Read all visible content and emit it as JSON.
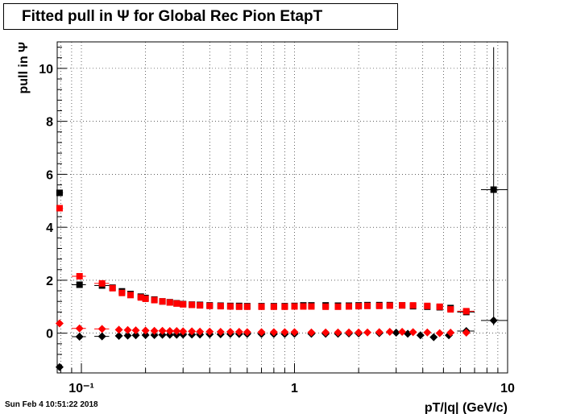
{
  "chart_data": {
    "type": "scatter",
    "title": "Fitted pull in  Ψ  for Global Rec Pion EtapT",
    "xlabel": "pT/|q| (GeV/c)",
    "ylabel": "pull in  Ψ",
    "xscale": "log",
    "xlim": [
      0.077,
      10
    ],
    "ylim": [
      -1.5,
      11.0
    ],
    "grid": true,
    "x_ticks": [
      {
        "v": 0.1,
        "label": "10⁻¹"
      },
      {
        "v": 1,
        "label": "1"
      },
      {
        "v": 10,
        "label": "10"
      }
    ],
    "y_ticks": [
      0,
      2,
      4,
      6,
      8,
      10
    ],
    "series": [
      {
        "color": "#000000",
        "marker": "square",
        "points": [
          [
            0.079,
            5.3
          ],
          [
            0.098,
            1.83
          ],
          [
            0.125,
            1.8
          ],
          [
            0.14,
            1.72
          ],
          [
            0.155,
            1.58
          ],
          [
            0.17,
            1.48
          ],
          [
            0.19,
            1.38
          ],
          [
            0.2,
            1.33
          ],
          [
            0.22,
            1.27
          ],
          [
            0.24,
            1.2
          ],
          [
            0.26,
            1.17
          ],
          [
            0.28,
            1.13
          ],
          [
            0.3,
            1.1
          ],
          [
            0.33,
            1.08
          ],
          [
            0.36,
            1.07
          ],
          [
            0.4,
            1.05
          ],
          [
            0.45,
            1.04
          ],
          [
            0.5,
            1.03
          ],
          [
            0.55,
            1.03
          ],
          [
            0.6,
            1.02
          ],
          [
            0.7,
            1.02
          ],
          [
            0.8,
            1.02
          ],
          [
            0.9,
            1.02
          ],
          [
            1.0,
            1.03
          ],
          [
            1.1,
            1.05
          ],
          [
            1.2,
            1.05
          ],
          [
            1.4,
            1.05
          ],
          [
            1.6,
            1.04
          ],
          [
            1.8,
            1.04
          ],
          [
            2.0,
            1.05
          ],
          [
            2.2,
            1.06
          ],
          [
            2.5,
            1.06
          ],
          [
            2.8,
            1.06
          ],
          [
            3.2,
            1.05
          ],
          [
            3.6,
            1.02
          ],
          [
            4.2,
            1.0
          ],
          [
            4.8,
            0.98
          ],
          [
            5.4,
            0.95
          ],
          [
            6.4,
            0.8
          ],
          [
            8.6,
            5.42
          ]
        ],
        "xerr": [
          [
            0.077,
            0.082
          ],
          [
            0.09,
            0.105
          ],
          [
            0.115,
            0.135
          ],
          null,
          null,
          null,
          null,
          null,
          null,
          null,
          null,
          null,
          null,
          null,
          null,
          null,
          null,
          null,
          null,
          null,
          null,
          null,
          null,
          null,
          null,
          null,
          null,
          null,
          null,
          null,
          null,
          null,
          null,
          null,
          null,
          null,
          null,
          null,
          [
            5.8,
            7.0
          ],
          [
            7.5,
            10.0
          ]
        ]
      },
      {
        "color": "#000000",
        "marker": "diamond",
        "points": [
          [
            0.079,
            -1.28
          ],
          [
            0.098,
            -0.13
          ],
          [
            0.125,
            -0.12
          ],
          [
            0.15,
            -0.1
          ],
          [
            0.165,
            -0.09
          ],
          [
            0.18,
            -0.08
          ],
          [
            0.2,
            -0.07
          ],
          [
            0.22,
            -0.07
          ],
          [
            0.24,
            -0.06
          ],
          [
            0.26,
            -0.06
          ],
          [
            0.28,
            -0.06
          ],
          [
            0.3,
            -0.05
          ],
          [
            0.33,
            -0.05
          ],
          [
            0.36,
            -0.05
          ],
          [
            0.4,
            -0.04
          ],
          [
            0.45,
            -0.04
          ],
          [
            0.5,
            -0.03
          ],
          [
            0.55,
            -0.03
          ],
          [
            0.6,
            -0.03
          ],
          [
            0.7,
            -0.03
          ],
          [
            0.8,
            -0.03
          ],
          [
            0.9,
            -0.03
          ],
          [
            1.0,
            -0.02
          ],
          [
            1.2,
            -0.02
          ],
          [
            1.4,
            -0.02
          ],
          [
            1.6,
            -0.02
          ],
          [
            1.8,
            -0.01
          ],
          [
            2.0,
            -0.01
          ],
          [
            2.5,
            0.0
          ],
          [
            3.0,
            0.02
          ],
          [
            3.4,
            -0.02
          ],
          [
            3.9,
            -0.08
          ],
          [
            4.5,
            -0.15
          ],
          [
            5.3,
            -0.08
          ],
          [
            6.4,
            0.08
          ],
          [
            8.6,
            0.48
          ]
        ],
        "xerr": [
          [
            0.077,
            0.082
          ],
          [
            0.09,
            0.105
          ],
          [
            0.115,
            0.135
          ],
          null,
          null,
          null,
          null,
          null,
          null,
          null,
          null,
          null,
          null,
          null,
          null,
          null,
          null,
          null,
          null,
          null,
          null,
          null,
          null,
          null,
          null,
          null,
          null,
          null,
          null,
          null,
          null,
          null,
          null,
          null,
          [
            5.8,
            7.0
          ],
          [
            7.5,
            10.0
          ]
        ]
      },
      {
        "color": "#ff0000",
        "marker": "square",
        "points": [
          [
            0.079,
            4.72
          ],
          [
            0.098,
            2.15
          ],
          [
            0.125,
            1.88
          ],
          [
            0.14,
            1.7
          ],
          [
            0.155,
            1.52
          ],
          [
            0.17,
            1.44
          ],
          [
            0.19,
            1.35
          ],
          [
            0.2,
            1.3
          ],
          [
            0.22,
            1.25
          ],
          [
            0.24,
            1.2
          ],
          [
            0.26,
            1.16
          ],
          [
            0.28,
            1.12
          ],
          [
            0.3,
            1.09
          ],
          [
            0.33,
            1.07
          ],
          [
            0.36,
            1.05
          ],
          [
            0.4,
            1.03
          ],
          [
            0.45,
            1.02
          ],
          [
            0.5,
            1.01
          ],
          [
            0.55,
            1.0
          ],
          [
            0.6,
            1.0
          ],
          [
            0.7,
            1.0
          ],
          [
            0.8,
            1.0
          ],
          [
            0.9,
            1.0
          ],
          [
            1.0,
            1.01
          ],
          [
            1.1,
            1.01
          ],
          [
            1.2,
            1.01
          ],
          [
            1.4,
            1.0
          ],
          [
            1.6,
            1.0
          ],
          [
            1.8,
            1.01
          ],
          [
            2.0,
            1.02
          ],
          [
            2.2,
            1.03
          ],
          [
            2.5,
            1.03
          ],
          [
            2.8,
            1.04
          ],
          [
            3.2,
            1.05
          ],
          [
            3.6,
            1.05
          ],
          [
            4.2,
            1.03
          ],
          [
            4.8,
            1.0
          ],
          [
            5.4,
            0.9
          ],
          [
            6.4,
            0.83
          ]
        ],
        "xerr": [
          [
            0.077,
            0.082
          ],
          [
            0.09,
            0.105
          ],
          [
            0.115,
            0.135
          ],
          null,
          null,
          null,
          null,
          null,
          null,
          null,
          null,
          null,
          null,
          null,
          null,
          null,
          null,
          null,
          null,
          null,
          null,
          null,
          null,
          null,
          null,
          null,
          null,
          null,
          null,
          null,
          null,
          null,
          null,
          null,
          null,
          null,
          null,
          null,
          [
            5.8,
            7.0
          ]
        ]
      },
      {
        "color": "#ff0000",
        "marker": "diamond",
        "points": [
          [
            0.079,
            0.37
          ],
          [
            0.098,
            0.18
          ],
          [
            0.125,
            0.16
          ],
          [
            0.15,
            0.13
          ],
          [
            0.165,
            0.12
          ],
          [
            0.18,
            0.11
          ],
          [
            0.2,
            0.1
          ],
          [
            0.22,
            0.09
          ],
          [
            0.24,
            0.09
          ],
          [
            0.26,
            0.08
          ],
          [
            0.28,
            0.08
          ],
          [
            0.3,
            0.07
          ],
          [
            0.33,
            0.07
          ],
          [
            0.36,
            0.06
          ],
          [
            0.4,
            0.06
          ],
          [
            0.45,
            0.05
          ],
          [
            0.5,
            0.05
          ],
          [
            0.55,
            0.05
          ],
          [
            0.6,
            0.04
          ],
          [
            0.7,
            0.04
          ],
          [
            0.8,
            0.04
          ],
          [
            0.9,
            0.04
          ],
          [
            1.0,
            0.04
          ],
          [
            1.2,
            0.03
          ],
          [
            1.4,
            0.03
          ],
          [
            1.6,
            0.03
          ],
          [
            1.8,
            0.03
          ],
          [
            2.0,
            0.03
          ],
          [
            2.2,
            0.03
          ],
          [
            2.5,
            0.04
          ],
          [
            2.8,
            0.05
          ],
          [
            3.2,
            0.05
          ],
          [
            3.6,
            0.04
          ],
          [
            4.2,
            0.03
          ],
          [
            4.8,
            0.0
          ],
          [
            5.4,
            0.02
          ],
          [
            6.4,
            0.02
          ]
        ],
        "xerr": [
          [
            0.077,
            0.082
          ],
          [
            0.09,
            0.105
          ],
          [
            0.115,
            0.135
          ],
          null,
          null,
          null,
          null,
          null,
          null,
          null,
          null,
          null,
          null,
          null,
          null,
          null,
          null,
          null,
          null,
          null,
          null,
          null,
          null,
          null,
          null,
          null,
          null,
          null,
          null,
          null,
          null,
          null,
          null,
          null,
          null,
          null,
          null
        ]
      }
    ],
    "vertical_error_bar": {
      "x": 8.6,
      "y_low": 0.3,
      "y_high": 10.8,
      "color": "#000000"
    }
  },
  "footer": {
    "date": "Sun Feb  4 10:51:22 2018"
  }
}
